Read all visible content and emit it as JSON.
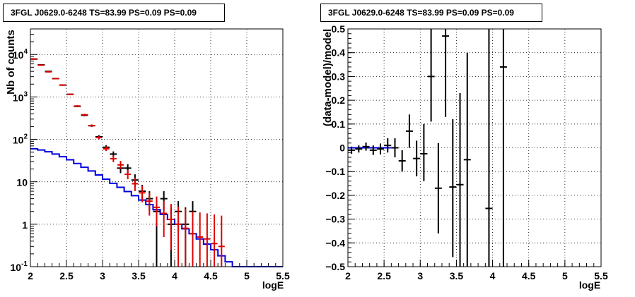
{
  "chart_data": [
    {
      "type": "histogram-with-errorbars",
      "title": "3FGL J0629.0-6248 TS=83.99 PS=0.09 PS=0.09",
      "xlabel": "logE",
      "ylabel": "Nb of counts",
      "xlim": [
        2,
        5.5
      ],
      "ylim": [
        0.1,
        40000
      ],
      "yscale": "log",
      "grid": true,
      "x_ticks": [
        "2",
        "2.5",
        "3",
        "3.5",
        "4",
        "4.5",
        "5",
        "5.5"
      ],
      "y_ticks": [
        "10^{-1}",
        "1",
        "10",
        "10^{2}",
        "10^{3}",
        "10^{4}"
      ],
      "series": [
        {
          "color": "#000000",
          "kind": "data-errorbars",
          "x": [
            2.05,
            2.15,
            2.25,
            2.35,
            2.45,
            2.55,
            2.65,
            2.75,
            2.85,
            2.95,
            3.05,
            3.15,
            3.25,
            3.35,
            3.45,
            3.55,
            3.65,
            3.75,
            3.85,
            3.95,
            4.05,
            4.15,
            4.25
          ],
          "y": [
            7800,
            5700,
            4000,
            2700,
            1900,
            1150,
            600,
            370,
            210,
            115,
            65,
            45,
            21,
            21,
            11,
            6,
            4,
            2,
            4,
            1,
            2,
            1,
            2
          ],
          "ylow": [
            7650,
            5560,
            3880,
            2610,
            1830,
            1110,
            575,
            350,
            196,
            104,
            57,
            38,
            16,
            16,
            7.5,
            3.6,
            2.1,
            0.1,
            2.1,
            0.1,
            0.7,
            0.1,
            0.7
          ],
          "yhigh": [
            7950,
            5840,
            4120,
            2790,
            1970,
            1190,
            625,
            390,
            224,
            126,
            73,
            52,
            26,
            26,
            15,
            8.5,
            6,
            3.5,
            6,
            2.5,
            3.5,
            2.5,
            3.5
          ]
        },
        {
          "color": "#e00000",
          "kind": "model-errorbars",
          "x": [
            2.05,
            2.15,
            2.25,
            2.35,
            2.45,
            2.55,
            2.65,
            2.75,
            2.85,
            2.95,
            3.05,
            3.15,
            3.25,
            3.35,
            3.45,
            3.55,
            3.65,
            3.75,
            3.85,
            3.95,
            4.05,
            4.15,
            4.25,
            4.35,
            4.45,
            4.55,
            4.65
          ],
          "y": [
            7800,
            5600,
            3900,
            2700,
            1900,
            1150,
            610,
            380,
            210,
            110,
            60,
            35,
            25,
            15,
            9,
            5.5,
            3.5,
            2.5,
            1.8,
            1.3,
            1.0,
            0.8,
            0.6,
            0.5,
            0.45,
            0.35,
            0.3
          ],
          "ylow": [
            7600,
            5450,
            3780,
            2610,
            1830,
            1110,
            585,
            360,
            196,
            100,
            53,
            29,
            20,
            11.5,
            6,
            3.3,
            1.6,
            0.9,
            0.5,
            0.25,
            0.1,
            0.1,
            0.1,
            0.1,
            0.1,
            0.1,
            0.1
          ],
          "yhigh": [
            8000,
            5750,
            4020,
            2790,
            1970,
            1190,
            635,
            400,
            224,
            120,
            68,
            42,
            31,
            19,
            12.5,
            8,
            5.5,
            4.5,
            3.5,
            3.0,
            2.6,
            2.3,
            2.0,
            1.9,
            1.8,
            1.7,
            1.6
          ]
        },
        {
          "color": "#0000dd",
          "kind": "step",
          "bin_edges": [
            2.0,
            2.1,
            2.2,
            2.3,
            2.4,
            2.5,
            2.6,
            2.7,
            2.8,
            2.9,
            3.0,
            3.1,
            3.2,
            3.3,
            3.4,
            3.5,
            3.6,
            3.7,
            3.8,
            3.9,
            4.0,
            4.1,
            4.2,
            4.3,
            4.4,
            4.5,
            4.6,
            4.7,
            4.8,
            4.9,
            5.0,
            5.1,
            5.2,
            5.3,
            5.4,
            5.5
          ],
          "values": [
            60,
            56,
            51,
            45,
            39,
            33,
            27,
            22,
            18,
            14.5,
            11.5,
            9.2,
            7.4,
            5.9,
            4.7,
            3.7,
            2.9,
            2.2,
            1.7,
            1.3,
            1.0,
            0.78,
            0.6,
            0.45,
            0.34,
            0.25,
            0.18,
            0.13,
            0.1,
            0.1,
            0.1,
            0.1,
            0.1,
            0.1,
            0.1
          ]
        }
      ]
    },
    {
      "type": "scatter-with-errorbars",
      "title": "3FGL J0629.0-6248 TS=83.99 PS=0.09 PS=0.09",
      "xlabel": "logE",
      "ylabel": "(data-model)/model",
      "xlim": [
        2,
        5.5
      ],
      "ylim": [
        -0.5,
        0.5
      ],
      "grid": true,
      "x_ticks": [
        "2",
        "2.5",
        "3",
        "3.5",
        "4",
        "4.5",
        "5",
        "5.5"
      ],
      "y_ticks": [
        "−0.5",
        "−0.4",
        "−0.3",
        "−0.2",
        "−0.1",
        "0",
        "0.1",
        "0.2",
        "0.3",
        "0.4",
        "0.5"
      ],
      "series": [
        {
          "color": "#000000",
          "kind": "residual-errorbars",
          "x": [
            2.05,
            2.15,
            2.25,
            2.35,
            2.45,
            2.55,
            2.65,
            2.75,
            2.85,
            2.95,
            3.05,
            3.15,
            3.25,
            3.35,
            3.45,
            3.55,
            3.65,
            3.95,
            4.15
          ],
          "y": [
            -0.01,
            -0.005,
            0.005,
            -0.01,
            -0.005,
            0.01,
            0.0,
            -0.055,
            0.07,
            -0.045,
            -0.025,
            0.3,
            -0.17,
            0.47,
            -0.165,
            -0.155,
            -0.05,
            -0.255,
            0.34
          ],
          "ylow": [
            -0.025,
            -0.02,
            -0.012,
            -0.03,
            -0.028,
            -0.02,
            -0.04,
            -0.1,
            0.0,
            -0.12,
            -0.14,
            0.11,
            -0.36,
            0.13,
            -0.46,
            -0.5,
            -0.5,
            -0.5,
            -0.5
          ],
          "yhigh": [
            0.005,
            0.01,
            0.022,
            0.01,
            0.018,
            0.04,
            0.04,
            -0.01,
            0.14,
            0.03,
            0.1,
            0.5,
            0.02,
            0.5,
            0.12,
            0.23,
            0.4,
            0.5,
            0.5
          ]
        },
        {
          "color": "#0000dd",
          "kind": "zero-line",
          "x": [
            2.0,
            2.6
          ],
          "y": [
            0.0,
            0.0
          ]
        }
      ]
    }
  ]
}
